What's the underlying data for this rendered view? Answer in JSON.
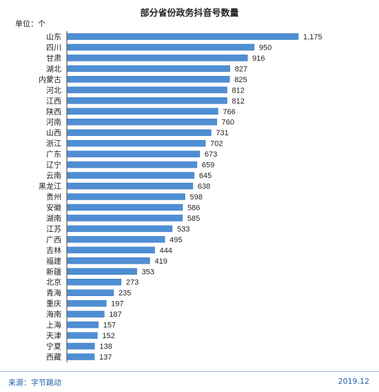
{
  "chart_data": {
    "type": "bar",
    "orientation": "horizontal",
    "title": "部分省份政务抖音号数量",
    "unit_label": "单位：个",
    "categories": [
      "山东",
      "四川",
      "甘肃",
      "湖北",
      "内蒙古",
      "河北",
      "江西",
      "陕西",
      "河南",
      "山西",
      "浙江",
      "广东",
      "辽宁",
      "云南",
      "黑龙江",
      "贵州",
      "安徽",
      "湖南",
      "江苏",
      "广西",
      "吉林",
      "福建",
      "新疆",
      "北京",
      "青海",
      "重庆",
      "海南",
      "上海",
      "天津",
      "宁夏",
      "西藏"
    ],
    "values": [
      1175,
      950,
      916,
      827,
      825,
      812,
      812,
      766,
      760,
      731,
      702,
      673,
      659,
      645,
      638,
      598,
      586,
      585,
      533,
      495,
      444,
      419,
      353,
      273,
      235,
      197,
      187,
      157,
      152,
      138,
      137
    ],
    "value_labels": [
      "1,175",
      "950",
      "916",
      "827",
      "825",
      "812",
      "812",
      "766",
      "760",
      "731",
      "702",
      "673",
      "659",
      "645",
      "638",
      "598",
      "586",
      "585",
      "533",
      "495",
      "444",
      "419",
      "353",
      "273",
      "235",
      "197",
      "187",
      "157",
      "152",
      "138",
      "137"
    ],
    "xlim": [
      0,
      1175
    ],
    "grid": false,
    "bar_color": "#4f8ed3"
  },
  "footer": {
    "source": "来源：字节跳动",
    "date": "2019.12"
  }
}
